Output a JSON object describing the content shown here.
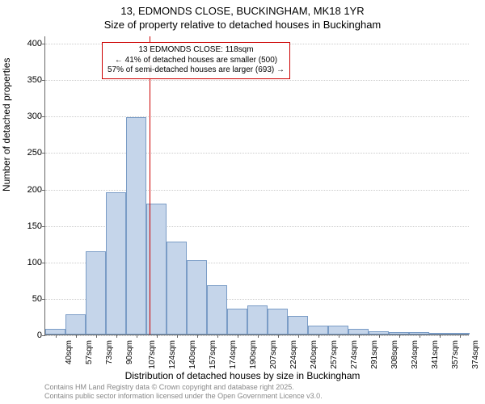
{
  "titles": {
    "main": "13, EDMONDS CLOSE, BUCKINGHAM, MK18 1YR",
    "sub": "Size of property relative to detached houses in Buckingham"
  },
  "axes": {
    "y_label": "Number of detached properties",
    "x_label": "Distribution of detached houses by size in Buckingham",
    "y_min": 0,
    "y_max": 410,
    "y_ticks": [
      0,
      50,
      100,
      150,
      200,
      250,
      300,
      350,
      400
    ]
  },
  "annotation": {
    "line1": "13 EDMONDS CLOSE: 118sqm",
    "line2": "← 41% of detached houses are smaller (500)",
    "line3": "57% of semi-detached houses are larger (693) →",
    "marker_x_value": 118,
    "marker_color": "#cc0000"
  },
  "chart": {
    "type": "histogram",
    "bar_fill": "#c5d5ea",
    "bar_stroke": "#7a9cc6",
    "background_color": "#ffffff",
    "grid_color": "#cccccc",
    "x_categories": [
      "40sqm",
      "57sqm",
      "73sqm",
      "90sqm",
      "107sqm",
      "124sqm",
      "140sqm",
      "157sqm",
      "174sqm",
      "190sqm",
      "207sqm",
      "224sqm",
      "240sqm",
      "257sqm",
      "274sqm",
      "291sqm",
      "308sqm",
      "324sqm",
      "341sqm",
      "357sqm",
      "374sqm"
    ],
    "x_numeric": [
      40,
      57,
      73,
      90,
      107,
      124,
      140,
      157,
      174,
      190,
      207,
      224,
      240,
      257,
      274,
      291,
      308,
      324,
      341,
      357,
      374
    ],
    "values": [
      8,
      28,
      114,
      195,
      298,
      180,
      127,
      102,
      68,
      35,
      40,
      35,
      25,
      12,
      12,
      8,
      4,
      3,
      3,
      2,
      1
    ]
  },
  "footer": {
    "line1": "Contains HM Land Registry data © Crown copyright and database right 2025.",
    "line2": "Contains public sector information licensed under the Open Government Licence v3.0."
  }
}
